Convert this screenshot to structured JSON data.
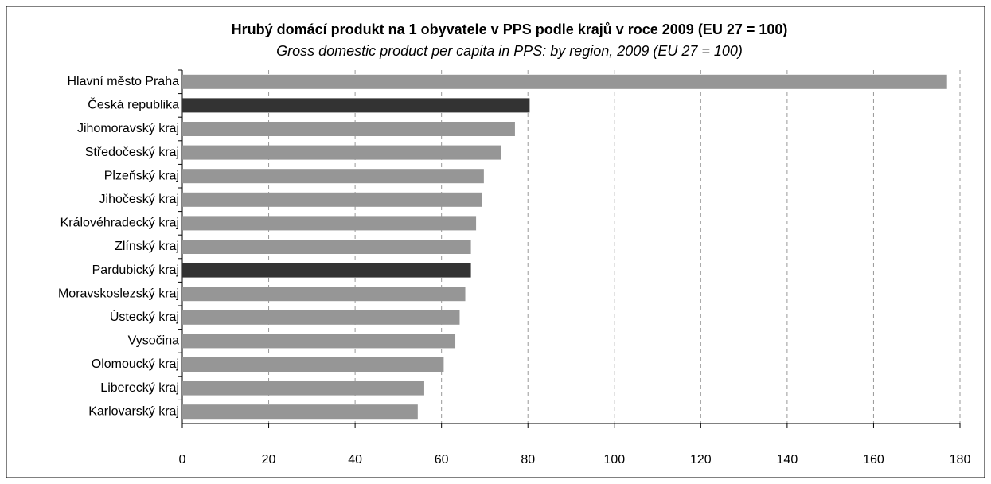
{
  "chart_data": {
    "type": "hbar",
    "title": "Hrubý domácí produkt na 1 obyvatele v PPS podle krajů v roce 2009 (EU 27 = 100)",
    "subtitle": "Gross domestic product per capita in PPS: by region, 2009 (EU 27 = 100)",
    "categories": [
      "Hlavní město Praha",
      "Česká republika",
      "Jihomoravský kraj",
      "Středočeský kraj",
      "Plzeňský kraj",
      "Jihočeský kraj",
      "Královéhradecký kraj",
      "Zlínský kraj",
      "Pardubický kraj",
      "Moravskoslezský kraj",
      "Ústecký kraj",
      "Vysočina",
      "Olomoucký kraj",
      "Liberecký kraj",
      "Karlovarský kraj"
    ],
    "values": [
      177,
      80.4,
      77,
      73.8,
      69.8,
      69.4,
      68,
      66.8,
      66.8,
      65.5,
      64.2,
      63.2,
      60.5,
      56,
      54.5
    ],
    "colors": [
      "#969696",
      "#333333",
      "#969696",
      "#969696",
      "#969696",
      "#969696",
      "#969696",
      "#969696",
      "#333333",
      "#969696",
      "#969696",
      "#969696",
      "#969696",
      "#969696",
      "#969696"
    ],
    "xlim": [
      0,
      180
    ],
    "xticks": [
      0,
      20,
      40,
      60,
      80,
      100,
      120,
      140,
      160,
      180
    ],
    "grid": true
  }
}
